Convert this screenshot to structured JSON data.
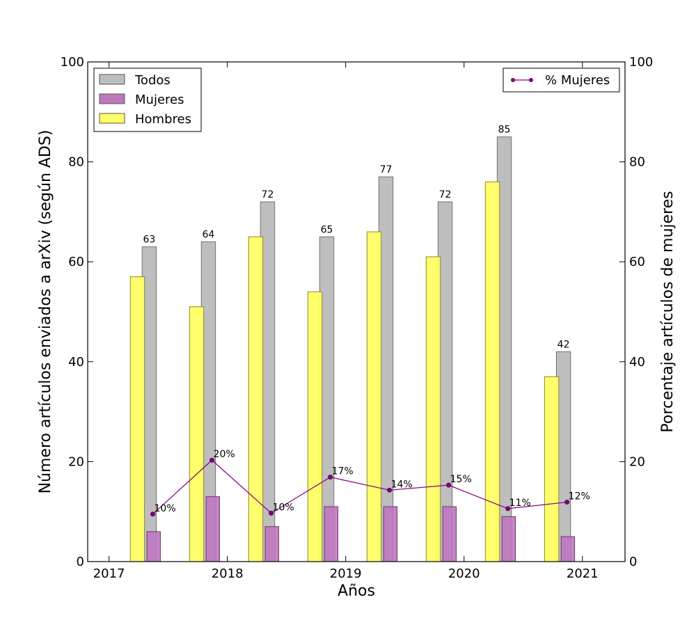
{
  "chart_data": {
    "type": "bar",
    "xlabel": "Años",
    "ylabel": "Número artículos enviados a arXiv (según ADS)",
    "y2label": "Porcentaje artículos de mujeres",
    "ylim": [
      0,
      100
    ],
    "y2lim": [
      0,
      100
    ],
    "xlim": [
      2016.82,
      2021.36
    ],
    "yticks": [
      "0",
      "20",
      "40",
      "60",
      "80",
      "100"
    ],
    "y2ticks": [
      "0",
      "20",
      "40",
      "60",
      "80",
      "100"
    ],
    "xticks": [
      {
        "value": 2017,
        "label": "2017"
      },
      {
        "value": 2018,
        "label": "2018"
      },
      {
        "value": 2019,
        "label": "2019"
      },
      {
        "value": 2020,
        "label": "2020"
      },
      {
        "value": 2021,
        "label": "2021"
      }
    ],
    "grid": false,
    "periods": [
      2017.25,
      2017.75,
      2018.25,
      2018.75,
      2019.25,
      2019.75,
      2020.25,
      2020.75
    ],
    "series": [
      {
        "name": "Todos",
        "color": "#bebebe",
        "values": [
          63,
          64,
          72,
          65,
          77,
          72,
          85,
          42
        ],
        "labels": [
          "63",
          "64",
          "72",
          "65",
          "77",
          "72",
          "85",
          "42"
        ]
      },
      {
        "name": "Mujeres",
        "color": "#bf77bf",
        "values": [
          6,
          13,
          7,
          11,
          11,
          11,
          9,
          5
        ]
      },
      {
        "name": "Hombres",
        "color": "#ffff66",
        "values": [
          57,
          51,
          65,
          54,
          66,
          61,
          76,
          37
        ]
      }
    ],
    "line_series": {
      "name": "% Mujeres",
      "color": "#800080",
      "axis": "right",
      "x": [
        2017.37,
        2017.87,
        2018.37,
        2018.87,
        2019.37,
        2019.87,
        2020.37,
        2020.87
      ],
      "values": [
        9.5,
        20.3,
        9.7,
        16.9,
        14.3,
        15.3,
        10.6,
        11.9
      ],
      "labels": [
        "10%",
        "20%",
        "10%",
        "17%",
        "14%",
        "15%",
        "11%",
        "12%"
      ]
    },
    "legend_left_placement": "top-left",
    "legend_right_placement": "top-right"
  }
}
